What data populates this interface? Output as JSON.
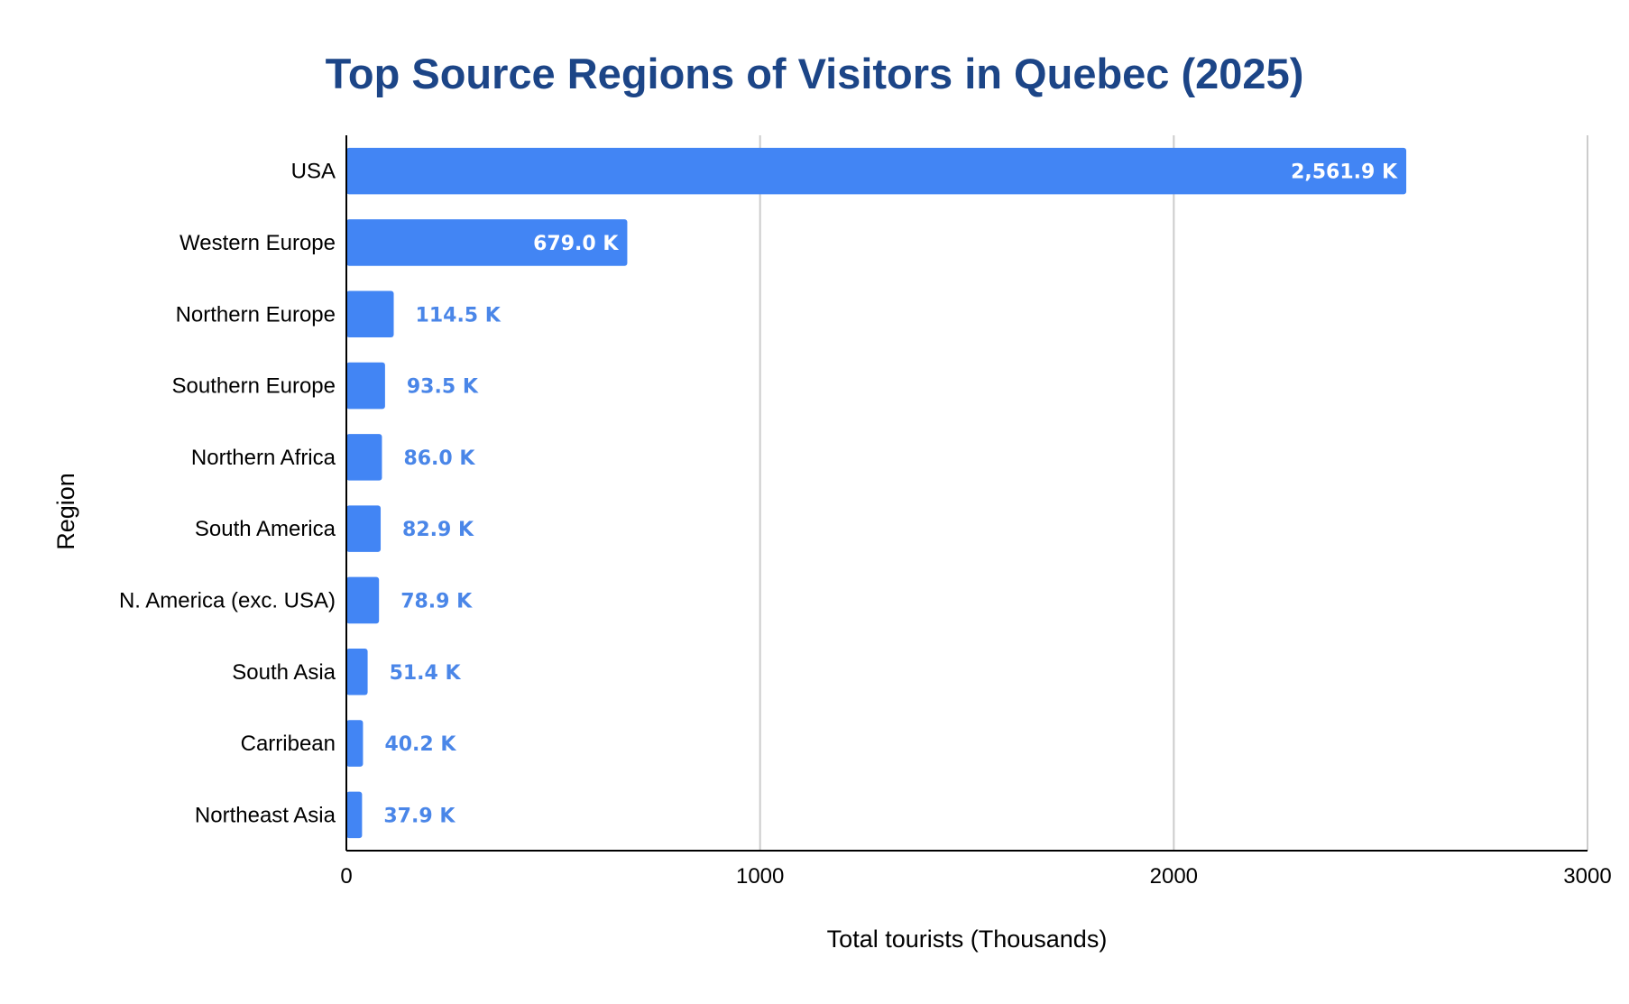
{
  "chart_data": {
    "type": "bar",
    "orientation": "horizontal",
    "title": "Top Source Regions of Visitors in Quebec (2025)",
    "xlabel": "Total tourists (Thousands)",
    "ylabel": "Region",
    "categories": [
      "USA",
      "Western Europe",
      "Northern Europe",
      "Southern Europe",
      "Northern Africa",
      "South America",
      "N. America (exc. USA)",
      "South Asia",
      "Carribean",
      "Northeast Asia"
    ],
    "values": [
      2561.9,
      679.0,
      114.5,
      93.5,
      86.0,
      82.9,
      78.9,
      51.4,
      40.2,
      37.9
    ],
    "data_labels": [
      "2,561.9 K",
      "679.0 K",
      "114.5 K",
      "93.5 K",
      "86.0 K",
      "82.9 K",
      "78.9 K",
      "51.4 K",
      "40.2 K",
      "37.9 K"
    ],
    "xlim": [
      0,
      3000
    ],
    "xticks": [
      0,
      1000,
      2000,
      3000
    ],
    "xtick_labels": [
      "0",
      "1000",
      "2000",
      "3000"
    ],
    "grid": "vertical",
    "legend": "none",
    "colors": {
      "bar": "#4285f4",
      "title": "#1c4587",
      "outside_label": "#4a86e8",
      "inside_label": "#ffffff",
      "gridline": "#cccccc",
      "axis": "#000000"
    }
  }
}
